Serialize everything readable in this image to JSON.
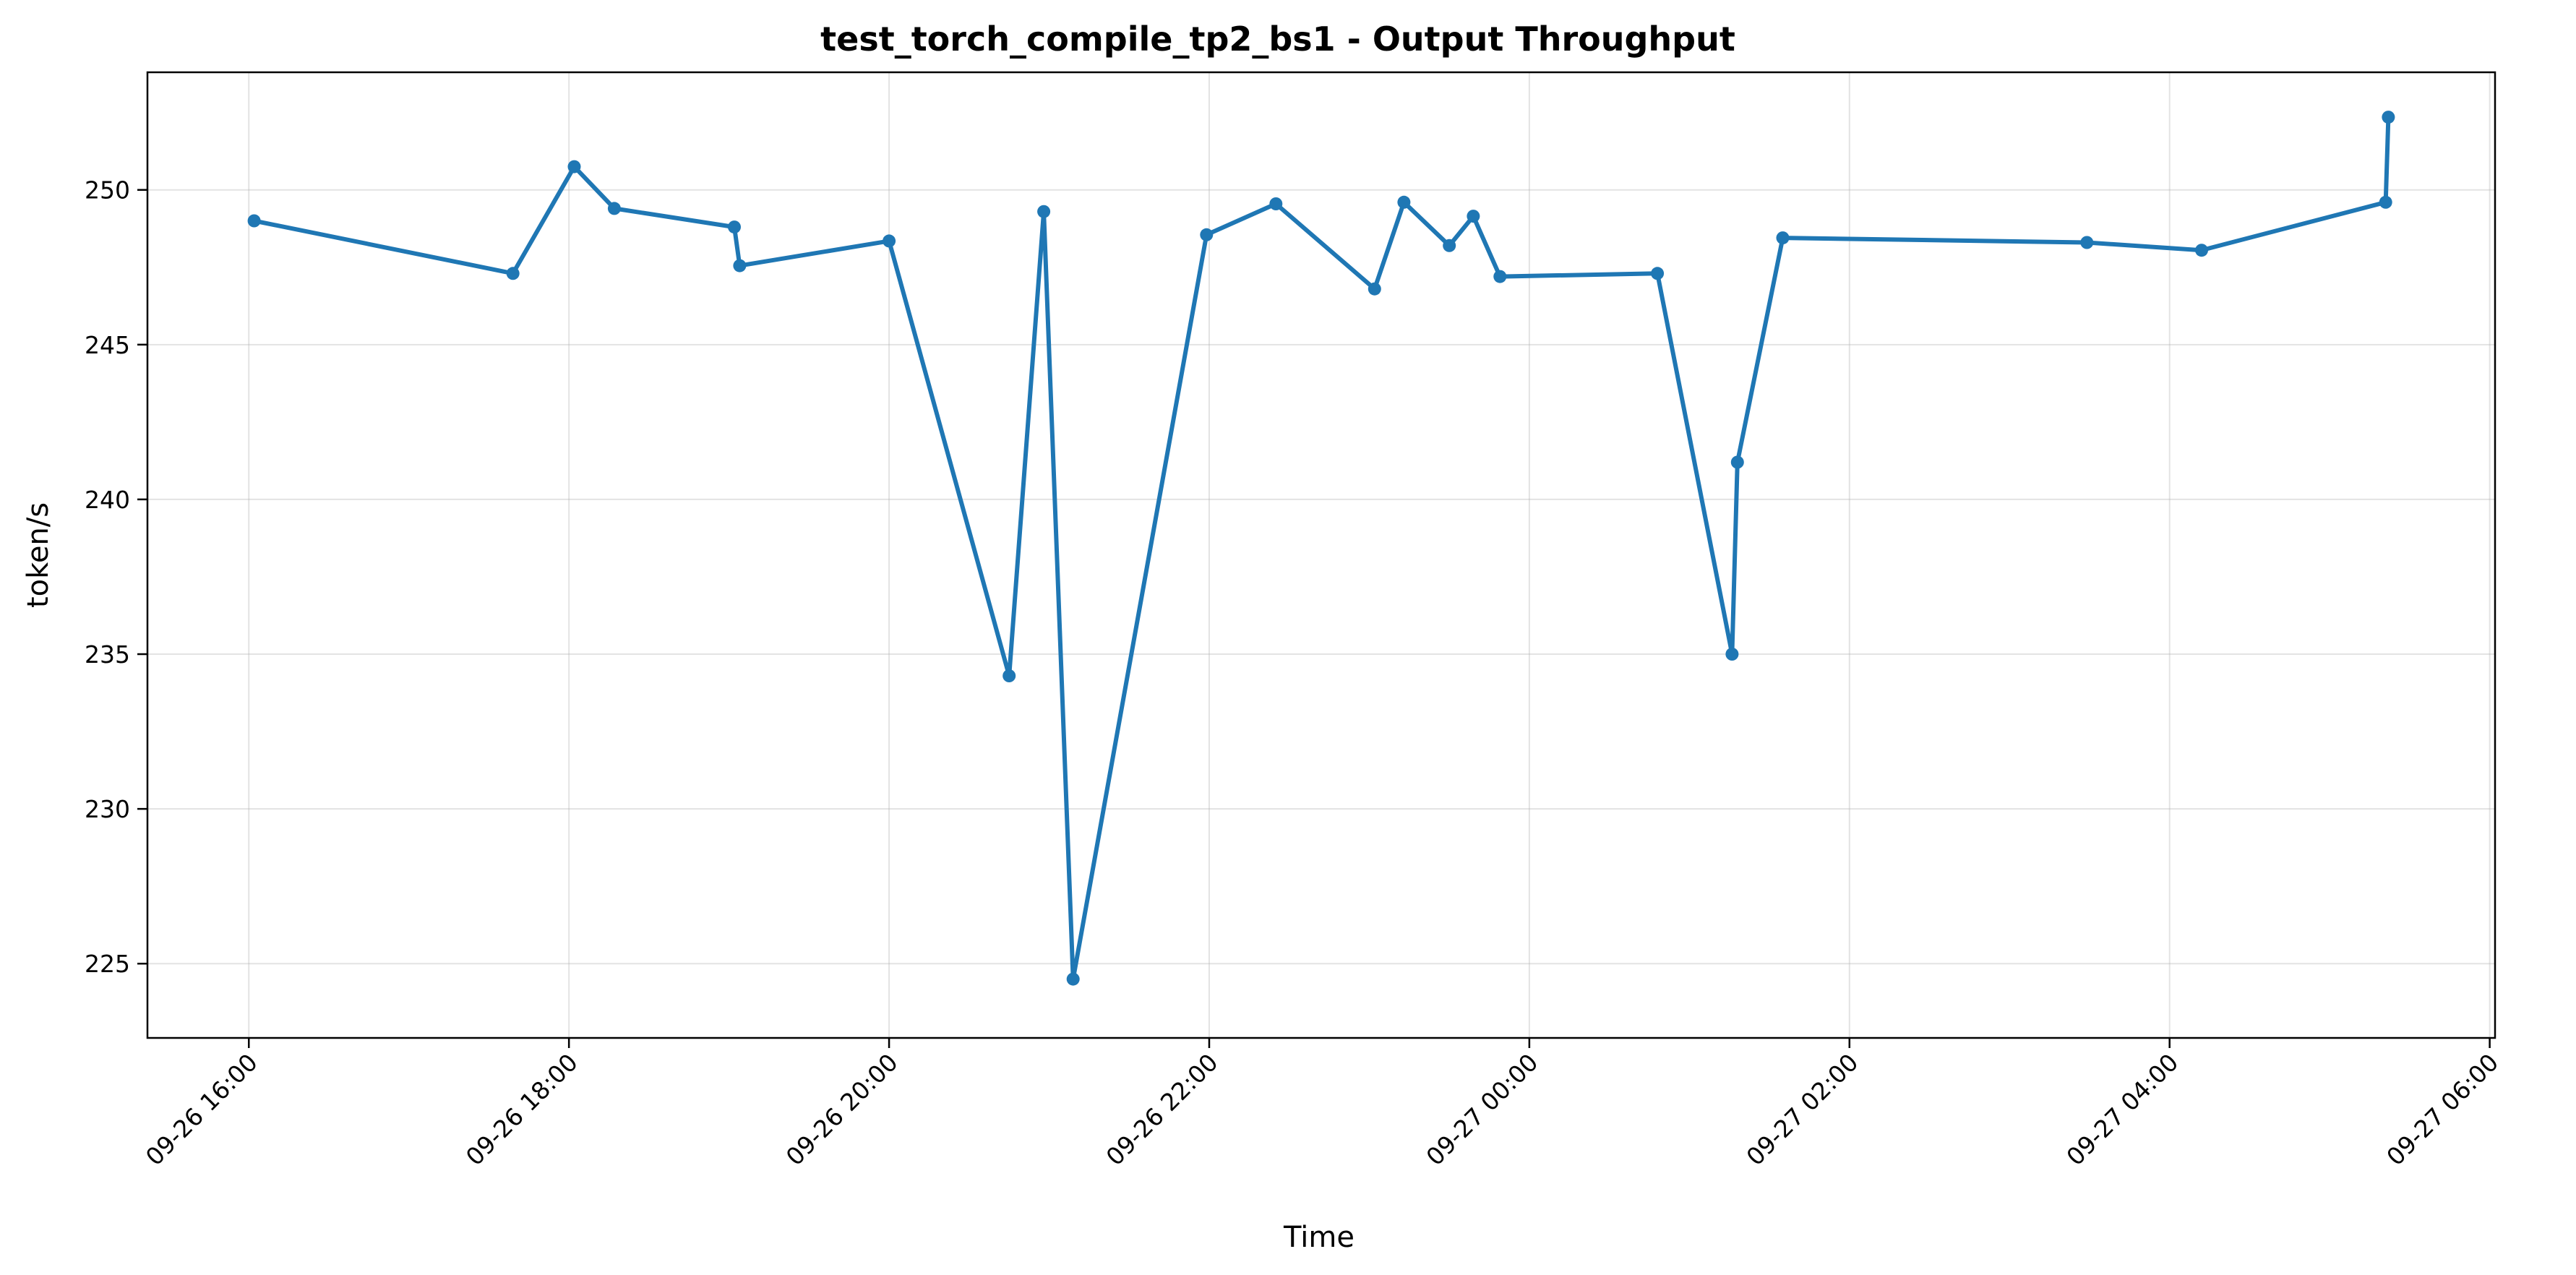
{
  "chart_data": {
    "type": "line",
    "title": "test_torch_compile_tp2_bs1 - Output Throughput",
    "xlabel": "Time",
    "ylabel": "token/s",
    "x_ticks": [
      "09-26 16:00",
      "09-26 18:00",
      "09-26 20:00",
      "09-26 22:00",
      "09-27 00:00",
      "09-27 02:00",
      "09-27 04:00",
      "09-27 06:00"
    ],
    "y_ticks": [
      "225",
      "230",
      "235",
      "240",
      "245",
      "250"
    ],
    "xlim": [
      "09-26 15:22",
      "09-27 06:02"
    ],
    "ylim": [
      222.6,
      253.8
    ],
    "grid": true,
    "color": "#1f77b4",
    "series": [
      {
        "x": [
          "09-26 16:02",
          "09-26 17:39",
          "09-26 18:02",
          "09-26 18:17",
          "09-26 19:02",
          "09-26 19:04",
          "09-26 20:00",
          "09-26 20:45",
          "09-26 20:58",
          "09-26 21:09",
          "09-26 21:59",
          "09-26 22:25",
          "09-26 23:02",
          "09-26 23:13",
          "09-26 23:30",
          "09-26 23:39",
          "09-26 23:49",
          "09-27 00:48",
          "09-27 01:16",
          "09-27 01:18",
          "09-27 01:35",
          "09-27 03:29",
          "09-27 04:12",
          "09-27 05:21",
          "09-27 05:22"
        ],
        "y": [
          249.0,
          247.3,
          250.75,
          249.4,
          248.8,
          247.55,
          248.35,
          234.3,
          249.3,
          224.5,
          248.55,
          249.55,
          246.8,
          249.6,
          248.2,
          249.15,
          247.2,
          247.3,
          235.0,
          241.2,
          248.45,
          248.3,
          248.05,
          249.6,
          252.35
        ]
      }
    ]
  }
}
